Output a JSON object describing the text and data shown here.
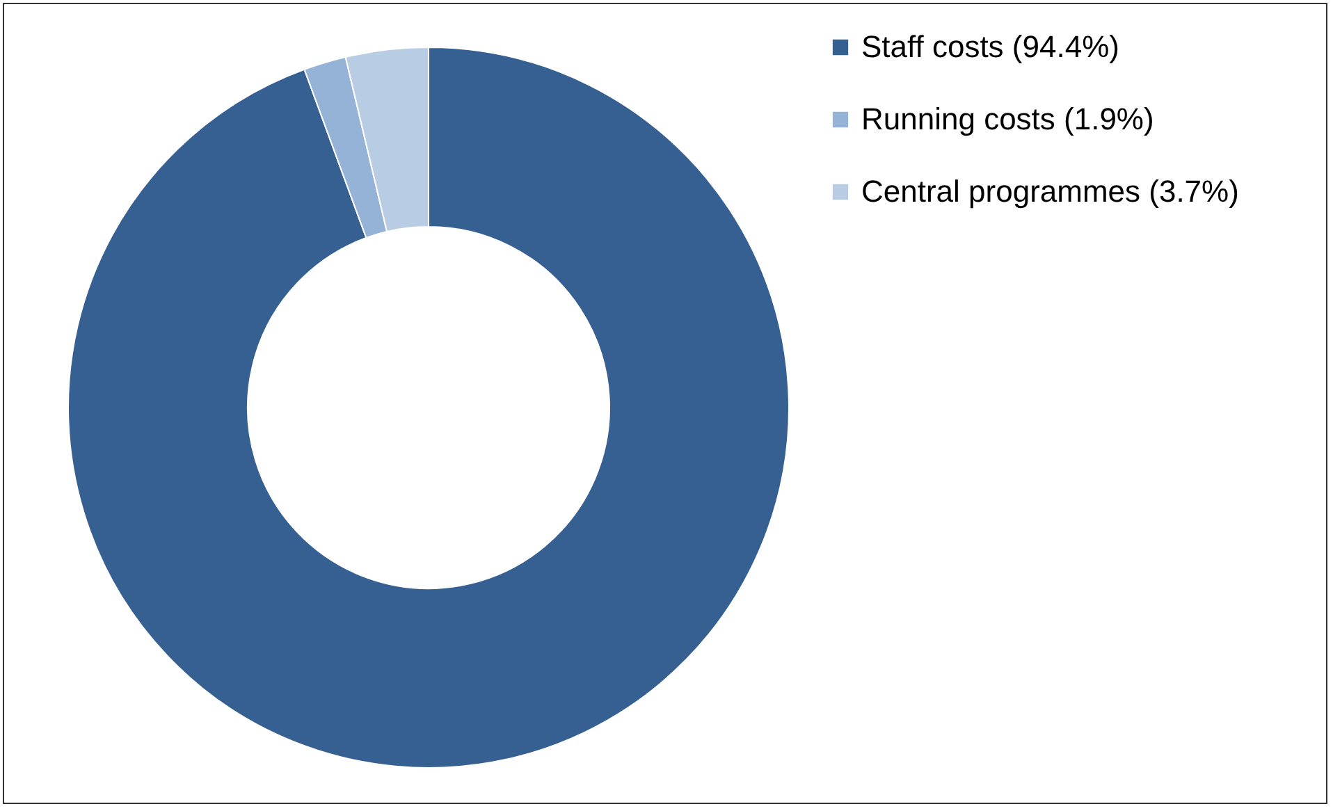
{
  "chart_data": {
    "type": "donut",
    "categories": [
      "Staff costs (94.4%)",
      "Running costs (1.9%)",
      "Central programmes (3.7%)"
    ],
    "values": [
      94.4,
      1.9,
      3.7
    ],
    "colors": [
      "#366092",
      "#95b3d7",
      "#b8cce4"
    ],
    "legend": "right"
  }
}
